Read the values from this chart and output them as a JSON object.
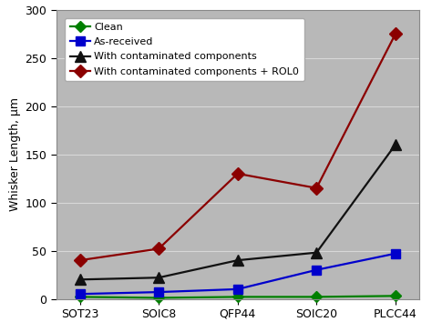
{
  "categories": [
    "SOT23",
    "SOIC8",
    "QFP44",
    "SOIC20",
    "PLCC44"
  ],
  "series": [
    {
      "label": "Clean",
      "color": "#008000",
      "marker": "D",
      "markersize": 6,
      "values": [
        2,
        1,
        2,
        2,
        3
      ]
    },
    {
      "label": "As-received",
      "color": "#0000cc",
      "marker": "s",
      "markersize": 7,
      "values": [
        5,
        7,
        10,
        30,
        47
      ]
    },
    {
      "label": "With contaminated components",
      "color": "#111111",
      "marker": "^",
      "markersize": 8,
      "values": [
        20,
        22,
        40,
        48,
        160
      ]
    },
    {
      "label": "With contaminated components + ROL0",
      "color": "#8b0000",
      "marker": "D",
      "markersize": 7,
      "values": [
        40,
        52,
        130,
        115,
        275
      ]
    }
  ],
  "ylabel": "Whisker Length, μm",
  "ylim": [
    0,
    300
  ],
  "yticks": [
    0,
    50,
    100,
    150,
    200,
    250,
    300
  ],
  "figure_bg_color": "#ffffff",
  "plot_bg_color": "#b8b8b8",
  "legend_bg_color": "#ffffff",
  "grid_color": "#d8d8d8",
  "label_fontsize": 9,
  "tick_fontsize": 9,
  "legend_fontsize": 8,
  "linewidth": 1.6,
  "spine_color": "#888888"
}
